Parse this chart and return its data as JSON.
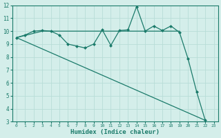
{
  "xlabel": "Humidex (Indice chaleur)",
  "xlim": [
    -0.5,
    23.5
  ],
  "ylim": [
    3,
    12
  ],
  "yticks": [
    3,
    4,
    5,
    6,
    7,
    8,
    9,
    10,
    11,
    12
  ],
  "xticks": [
    0,
    1,
    2,
    3,
    4,
    5,
    6,
    7,
    8,
    9,
    10,
    11,
    12,
    13,
    14,
    15,
    16,
    17,
    18,
    19,
    20,
    21,
    22,
    23
  ],
  "background_color": "#d4eeea",
  "grid_color": "#b8ddd7",
  "line_color": "#1a7a6a",
  "series_jagged": {
    "x": [
      0,
      1,
      2,
      3,
      4,
      5,
      6,
      7,
      8,
      9,
      10,
      11,
      12,
      13,
      14,
      15,
      16,
      17,
      18,
      19,
      20,
      21,
      22
    ],
    "y": [
      9.5,
      9.7,
      10.0,
      10.05,
      10.0,
      9.7,
      9.0,
      8.85,
      8.7,
      9.0,
      10.1,
      8.9,
      10.05,
      10.1,
      11.9,
      10.0,
      10.4,
      10.05,
      10.4,
      9.9,
      7.85,
      5.3,
      3.1
    ]
  },
  "series_flat": {
    "x": [
      0,
      3,
      4,
      10,
      11,
      14,
      15,
      16,
      17,
      18,
      19
    ],
    "y": [
      9.5,
      10.0,
      10.0,
      10.0,
      10.0,
      10.0,
      10.0,
      10.0,
      10.0,
      10.0,
      10.0
    ]
  },
  "series_diagonal": {
    "x": [
      0,
      22
    ],
    "y": [
      9.5,
      3.1
    ]
  },
  "marker_size": 2.5,
  "line_width": 0.9
}
